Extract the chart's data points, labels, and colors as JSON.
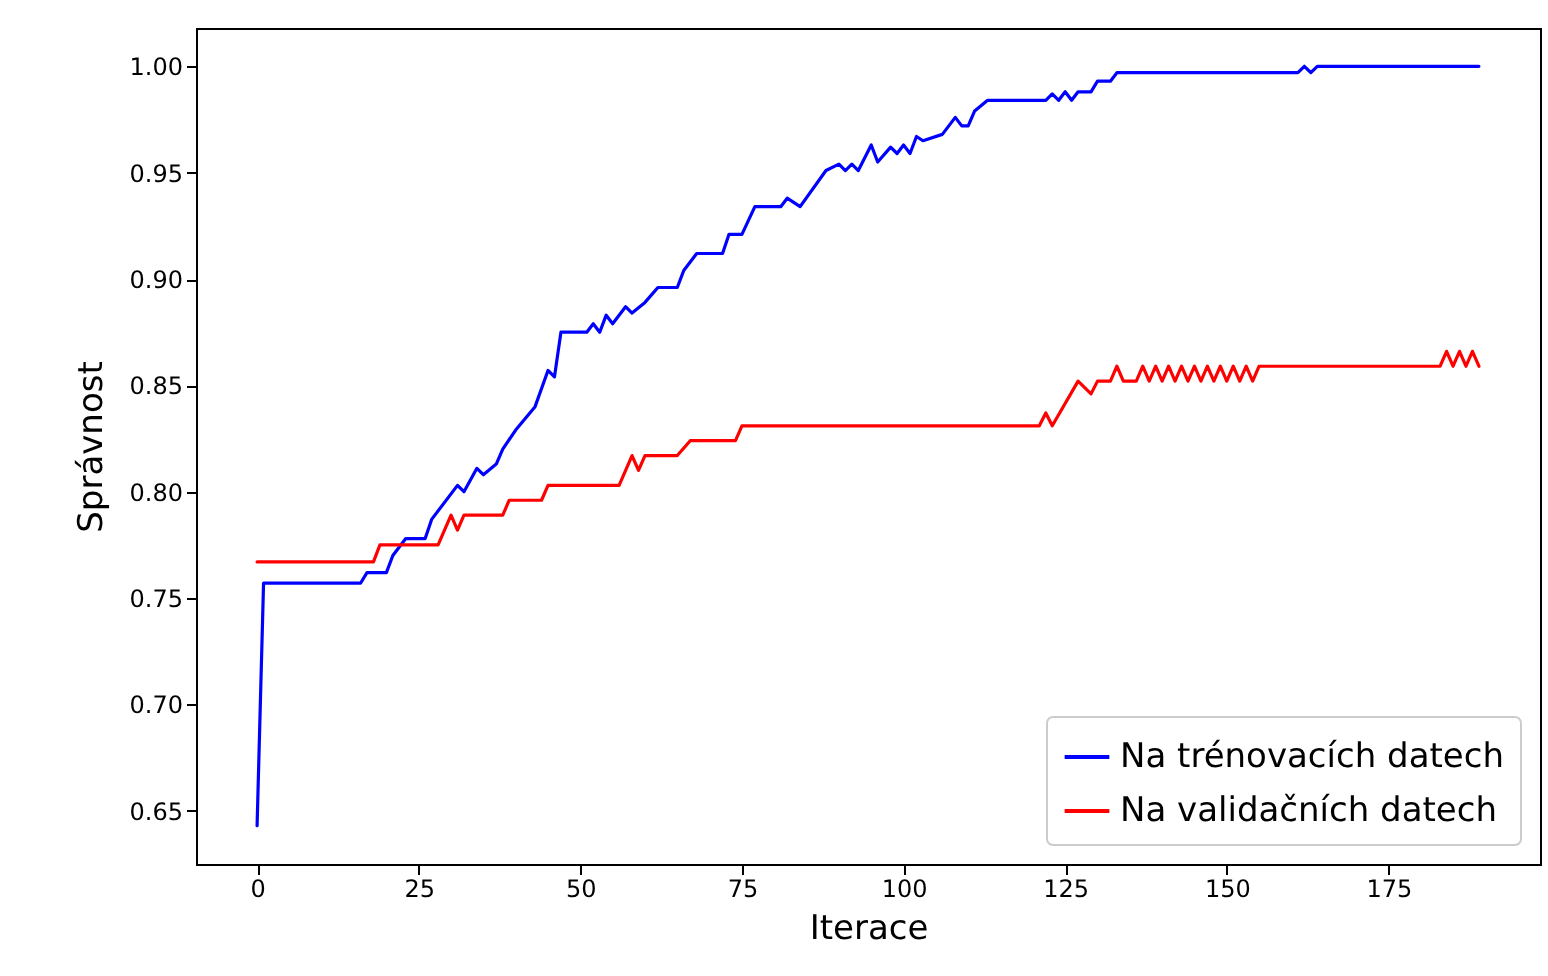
{
  "chart_data": {
    "type": "line",
    "xlabel": "Iterace",
    "ylabel": "Správnost",
    "xlim": [
      -9.45,
      198.45
    ],
    "ylim": [
      0.625,
      1.018
    ],
    "xticks": [
      0,
      25,
      50,
      75,
      100,
      125,
      150,
      175
    ],
    "yticks": [
      0.65,
      {
        "value": 0.7,
        "label": "0.70"
      },
      0.75,
      {
        "value": 0.8,
        "label": "0.80"
      },
      0.85,
      {
        "value": 0.9,
        "label": "0.90"
      },
      0.95,
      {
        "value": 1.0,
        "label": "1.00"
      }
    ],
    "grid": false,
    "legend": "bottom right",
    "line_style": "solid",
    "series": [
      {
        "name": "Na trénovacích datech",
        "color": "#0000ff",
        "x": [
          0,
          1,
          16,
          17,
          20,
          21,
          23,
          26,
          27,
          31,
          32,
          34,
          35,
          37,
          38,
          40,
          43,
          45,
          46,
          47,
          51,
          52,
          53,
          54,
          55,
          57,
          58,
          60,
          62,
          65,
          66,
          68,
          72,
          73,
          75,
          77,
          81,
          82,
          84,
          88,
          90,
          91,
          92,
          93,
          95,
          96,
          98,
          99,
          100,
          101,
          102,
          103,
          106,
          108,
          109,
          110,
          111,
          113,
          122,
          123,
          124,
          125,
          126,
          127,
          129,
          130,
          132,
          133,
          161,
          162,
          163,
          164,
          189
        ],
        "values": [
          0.643,
          0.757,
          0.757,
          0.762,
          0.762,
          0.77,
          0.778,
          0.778,
          0.787,
          0.803,
          0.8,
          0.811,
          0.808,
          0.813,
          0.82,
          0.829,
          0.84,
          0.857,
          0.854,
          0.875,
          0.875,
          0.879,
          0.875,
          0.883,
          0.879,
          0.887,
          0.884,
          0.889,
          0.896,
          0.896,
          0.904,
          0.912,
          0.912,
          0.921,
          0.921,
          0.934,
          0.934,
          0.938,
          0.934,
          0.951,
          0.954,
          0.951,
          0.954,
          0.951,
          0.963,
          0.955,
          0.962,
          0.959,
          0.963,
          0.959,
          0.967,
          0.965,
          0.968,
          0.976,
          0.972,
          0.972,
          0.979,
          0.984,
          0.984,
          0.987,
          0.984,
          0.988,
          0.984,
          0.988,
          0.988,
          0.993,
          0.993,
          0.997,
          0.997,
          1.0,
          0.997,
          1.0,
          1.0
        ]
      },
      {
        "name": "Na validačních datech",
        "color": "#ff0000",
        "x": [
          0,
          18,
          19,
          28,
          30,
          31,
          32,
          38,
          39,
          44,
          45,
          56,
          58,
          59,
          60,
          65,
          67,
          74,
          75,
          121,
          122,
          123,
          127,
          129,
          130,
          132,
          133,
          134,
          136,
          137,
          138,
          139,
          140,
          141,
          142,
          143,
          144,
          145,
          146,
          147,
          148,
          149,
          150,
          151,
          152,
          153,
          154,
          155,
          183,
          184,
          185,
          186,
          187,
          188,
          189
        ],
        "values": [
          0.767,
          0.767,
          0.775,
          0.775,
          0.789,
          0.782,
          0.789,
          0.789,
          0.796,
          0.796,
          0.803,
          0.803,
          0.817,
          0.81,
          0.817,
          0.817,
          0.824,
          0.824,
          0.831,
          0.831,
          0.837,
          0.831,
          0.852,
          0.846,
          0.852,
          0.852,
          0.859,
          0.852,
          0.852,
          0.859,
          0.852,
          0.859,
          0.852,
          0.859,
          0.852,
          0.859,
          0.852,
          0.859,
          0.852,
          0.859,
          0.852,
          0.859,
          0.852,
          0.859,
          0.852,
          0.859,
          0.852,
          0.859,
          0.859,
          0.866,
          0.859,
          0.866,
          0.859,
          0.866,
          0.859
        ]
      }
    ]
  }
}
